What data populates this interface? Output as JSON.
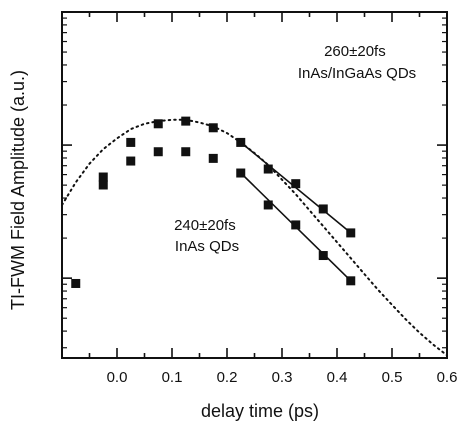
{
  "chart_data": {
    "type": "scatter",
    "title": "",
    "xlabel": "delay time (ps)",
    "ylabel": "TI-FWM Field Amplitude (a.u.)",
    "xlim": [
      -0.1,
      0.6
    ],
    "y_scale": "log",
    "ylim_decades": 2.6,
    "grid": false,
    "x_ticks": [
      "0.0",
      "0.1",
      "0.2",
      "0.3",
      "0.4",
      "0.5",
      "0.6"
    ],
    "annotations": [
      {
        "id": "upper",
        "lines": [
          "260±20fs",
          "InAs/InGaAs QDs"
        ]
      },
      {
        "id": "lower",
        "lines": [
          "240±20fs",
          "InAs QDs"
        ]
      }
    ],
    "series": [
      {
        "id": "inas-ingaas",
        "style": "square-markers",
        "x": [
          -0.025,
          0.025,
          0.075,
          0.125,
          0.175,
          0.225,
          0.275,
          0.325,
          0.375,
          0.425
        ],
        "y": [
          -1.24,
          -0.98,
          -0.84,
          -0.82,
          -0.87,
          -0.98,
          -1.18,
          -1.29,
          -1.48,
          -1.66
        ]
      },
      {
        "id": "inas",
        "style": "square-markers",
        "x": [
          -0.075,
          -0.025,
          0.025,
          0.075,
          0.125,
          0.175,
          0.225,
          0.275,
          0.325,
          0.375,
          0.425
        ],
        "y": [
          -2.04,
          -1.3,
          -1.12,
          -1.05,
          -1.05,
          -1.1,
          -1.21,
          -1.45,
          -1.6,
          -1.83,
          -2.02
        ]
      },
      {
        "id": "fit-upper",
        "style": "solid-line",
        "x": [
          0.225,
          0.425
        ],
        "y": [
          -0.98,
          -1.66
        ]
      },
      {
        "id": "fit-lower",
        "style": "solid-line",
        "x": [
          0.225,
          0.425
        ],
        "y": [
          -1.21,
          -2.02
        ]
      },
      {
        "id": "model",
        "style": "dotted-line",
        "x": [
          -0.1,
          -0.075,
          -0.05,
          -0.025,
          0.0,
          0.025,
          0.05,
          0.075,
          0.1,
          0.125,
          0.15,
          0.175,
          0.2,
          0.225,
          0.25,
          0.275,
          0.3,
          0.325,
          0.35,
          0.375,
          0.4,
          0.425,
          0.45,
          0.475,
          0.5,
          0.525,
          0.55,
          0.575,
          0.6
        ],
        "y": [
          -1.45,
          -1.28,
          -1.14,
          -1.03,
          -0.95,
          -0.88,
          -0.84,
          -0.82,
          -0.81,
          -0.81,
          -0.83,
          -0.86,
          -0.91,
          -0.98,
          -1.06,
          -1.15,
          -1.26,
          -1.37,
          -1.49,
          -1.61,
          -1.73,
          -1.85,
          -1.97,
          -2.09,
          -2.2,
          -2.31,
          -2.41,
          -2.5,
          -2.58
        ]
      }
    ]
  }
}
